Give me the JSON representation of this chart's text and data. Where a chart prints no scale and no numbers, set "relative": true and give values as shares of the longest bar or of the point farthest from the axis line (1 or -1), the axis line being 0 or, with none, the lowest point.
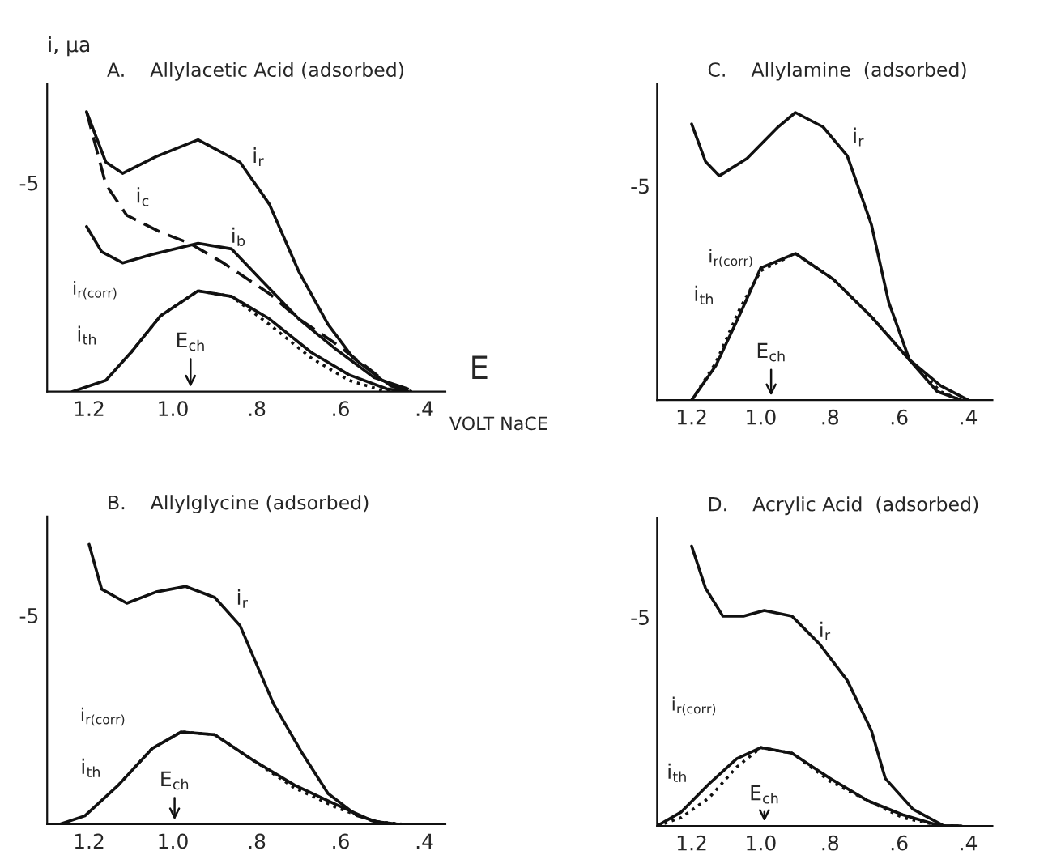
{
  "chart_data": [
    {
      "type": "line",
      "relative": true,
      "title": "A.    Allylacetic Acid (adsorbed)",
      "ylabel": "i, μa",
      "xlabel": "VOLT NaCE",
      "xlim": [
        1.3,
        0.35
      ],
      "xticks": [
        {
          "value": 1.2,
          "label": "1.2"
        },
        {
          "value": 1.0,
          "label": "1.0"
        },
        {
          "value": 0.8,
          "label": ".8"
        },
        {
          "value": 0.6,
          "label": ".6"
        },
        {
          "value": 0.4,
          "label": ".4"
        }
      ],
      "series": [
        {
          "color": "#111111",
          "line_style": "solid",
          "x": [
            1.206,
            1.16,
            1.12,
            1.04,
            0.94,
            0.84,
            0.77,
            0.7,
            0.63,
            0.57,
            0.5,
            0.44
          ],
          "values": [
            1,
            0.82,
            0.78,
            0.84,
            0.9,
            0.82,
            0.67,
            0.43,
            0.24,
            0.12,
            0.04,
            0
          ]
        },
        {
          "color": "#111111",
          "line_style": "dashed",
          "x": [
            1.206,
            1.16,
            1.11,
            1.03,
            0.96,
            0.88,
            0.77,
            0.7,
            0.62,
            0.54,
            0.48,
            0.43
          ],
          "values": [
            1,
            0.74,
            0.63,
            0.57,
            0.53,
            0.46,
            0.35,
            0.26,
            0.18,
            0.09,
            0.02,
            0
          ]
        },
        {
          "color": "#111111",
          "line_style": "solid",
          "x": [
            1.206,
            1.17,
            1.12,
            1.05,
            0.94,
            0.86,
            0.79,
            0.7,
            0.61,
            0.52,
            0.44
          ],
          "values": [
            0.59,
            0.5,
            0.46,
            0.49,
            0.53,
            0.51,
            0.4,
            0.26,
            0.15,
            0.05,
            0.01
          ]
        },
        {
          "color": "#111111",
          "line_style": "solid",
          "x": [
            1.24,
            1.16,
            1.1,
            1.03,
            0.94,
            0.86,
            0.77,
            0.67,
            0.58,
            0.49,
            0.44
          ],
          "values": [
            0,
            0.04,
            0.14,
            0.27,
            0.36,
            0.34,
            0.26,
            0.14,
            0.06,
            0.01,
            0
          ]
        },
        {
          "color": "#111111",
          "line_style": "dotted",
          "x": [
            1.1,
            1.03,
            0.94,
            0.86,
            0.77,
            0.67,
            0.58,
            0.49,
            0.44
          ],
          "values": [
            0.14,
            0.27,
            0.36,
            0.34,
            0.24,
            0.12,
            0.04,
            0,
            0
          ]
        }
      ],
      "annotations": [
        "i$_{r}$",
        "i$_{c}$",
        "i$_{b}$",
        "i$_{r(corr)}$",
        "i$_{th}$",
        "E$_{ch}$",
        "-5",
        "E"
      ]
    },
    {
      "type": "line",
      "relative": true,
      "title": "C.    Allylamine  (adsorbed)",
      "xlim": [
        1.3,
        0.33
      ],
      "xticks": [
        {
          "value": 1.2,
          "label": "1.2"
        },
        {
          "value": 1.0,
          "label": "1.0"
        },
        {
          "value": 0.8,
          "label": ".8"
        },
        {
          "value": 0.6,
          "label": ".6"
        },
        {
          "value": 0.4,
          "label": ".4"
        }
      ],
      "series": [
        {
          "color": "#111111",
          "line_style": "solid",
          "x": [
            1.2,
            1.16,
            1.12,
            1.04,
            0.95,
            0.9,
            0.82,
            0.75,
            0.68,
            0.63,
            0.57,
            0.49,
            0.42
          ],
          "values": [
            0.96,
            0.83,
            0.78,
            0.84,
            0.95,
            1,
            0.95,
            0.85,
            0.61,
            0.34,
            0.14,
            0.03,
            0
          ]
        },
        {
          "color": "#111111",
          "line_style": "solid",
          "x": [
            1.2,
            1.13,
            1.06,
            1.0,
            0.9,
            0.79,
            0.68,
            0.57,
            0.48,
            0.4
          ],
          "values": [
            0,
            0.12,
            0.3,
            0.46,
            0.51,
            0.42,
            0.29,
            0.14,
            0.05,
            0
          ]
        },
        {
          "color": "#111111",
          "line_style": "dotted",
          "x": [
            1.2,
            1.13,
            1.06,
            1.0,
            0.9,
            0.79,
            0.68,
            0.57,
            0.48,
            0.42
          ],
          "values": [
            0,
            0.13,
            0.32,
            0.45,
            0.51,
            0.42,
            0.29,
            0.14,
            0.03,
            0
          ]
        }
      ],
      "annotations": [
        "i$_{r}$",
        "i$_{r(corr)}$",
        "i$_{th}$",
        "E$_{ch}$",
        "-5"
      ]
    },
    {
      "type": "line",
      "relative": true,
      "title": "B.    Allylglycine (adsorbed)",
      "xlim": [
        1.3,
        0.35
      ],
      "xticks": [
        {
          "value": 1.2,
          "label": "1.2"
        },
        {
          "value": 1.0,
          "label": "1.0"
        },
        {
          "value": 0.8,
          "label": ".8"
        },
        {
          "value": 0.6,
          "label": ".6"
        },
        {
          "value": 0.4,
          "label": ".4"
        }
      ],
      "series": [
        {
          "color": "#111111",
          "line_style": "solid",
          "x": [
            1.2,
            1.17,
            1.11,
            1.04,
            0.97,
            0.9,
            0.84,
            0.76,
            0.69,
            0.63,
            0.56,
            0.49
          ],
          "values": [
            1,
            0.84,
            0.79,
            0.83,
            0.85,
            0.81,
            0.71,
            0.43,
            0.25,
            0.11,
            0.03,
            0
          ]
        },
        {
          "color": "#111111",
          "line_style": "solid",
          "x": [
            1.27,
            1.21,
            1.13,
            1.05,
            0.98,
            0.9,
            0.81,
            0.71,
            0.61,
            0.52,
            0.46
          ],
          "values": [
            0,
            0.03,
            0.14,
            0.27,
            0.33,
            0.32,
            0.23,
            0.14,
            0.07,
            0.01,
            0
          ]
        },
        {
          "color": "#111111",
          "line_style": "dotted",
          "x": [
            1.13,
            1.05,
            0.98,
            0.9,
            0.81,
            0.71,
            0.61,
            0.52,
            0.45
          ],
          "values": [
            0.14,
            0.27,
            0.33,
            0.32,
            0.23,
            0.13,
            0.06,
            0.01,
            0
          ]
        }
      ],
      "annotations": [
        "i$_{r}$",
        "i$_{r(corr)}$",
        "i$_{th}$",
        "E$_{ch}$",
        "-5"
      ]
    },
    {
      "type": "line",
      "relative": true,
      "title": "D.    Acrylic Acid  (adsorbed)",
      "xlim": [
        1.3,
        0.33
      ],
      "xticks": [
        {
          "value": 1.2,
          "label": "1.2"
        },
        {
          "value": 1.0,
          "label": "1.0"
        },
        {
          "value": 0.8,
          "label": ".8"
        },
        {
          "value": 0.6,
          "label": ".6"
        },
        {
          "value": 0.4,
          "label": ".4"
        }
      ],
      "series": [
        {
          "color": "#111111",
          "line_style": "solid",
          "x": [
            1.2,
            1.16,
            1.11,
            1.05,
            0.99,
            0.91,
            0.83,
            0.75,
            0.68,
            0.64,
            0.56,
            0.47,
            0.42
          ],
          "values": [
            1,
            0.85,
            0.75,
            0.75,
            0.77,
            0.75,
            0.65,
            0.52,
            0.34,
            0.17,
            0.06,
            0,
            0
          ]
        },
        {
          "color": "#111111",
          "line_style": "solid",
          "x": [
            1.3,
            1.23,
            1.15,
            1.07,
            1.0,
            0.91,
            0.8,
            0.69,
            0.59,
            0.48,
            0.43
          ],
          "values": [
            0,
            0.05,
            0.15,
            0.24,
            0.28,
            0.26,
            0.17,
            0.09,
            0.04,
            0,
            0
          ]
        },
        {
          "color": "#111111",
          "line_style": "dotted",
          "x": [
            1.3,
            1.23,
            1.15,
            1.07,
            1.0,
            0.91,
            0.8,
            0.69,
            0.59,
            0.48,
            0.43
          ],
          "values": [
            0,
            0.03,
            0.1,
            0.21,
            0.28,
            0.26,
            0.16,
            0.09,
            0.03,
            0,
            0
          ]
        }
      ],
      "annotations": [
        "i$_{r}$",
        "i$_{r(corr)}$",
        "i$_{th}$",
        "E$_{ch}$",
        "-5"
      ]
    }
  ]
}
